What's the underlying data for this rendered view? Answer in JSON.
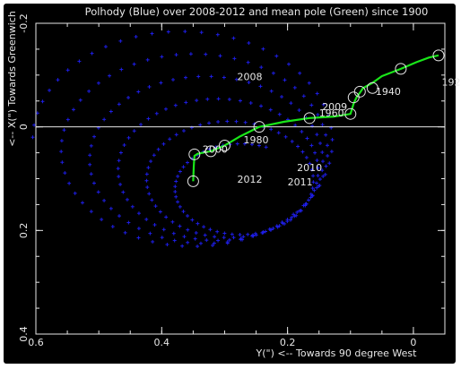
{
  "chart_data": {
    "type": "scatter",
    "title": "Polhody (Blue) over 2008-2012 and mean pole (Green) since 1900",
    "xlabel": "Y(\") <-- Towards 90 degree West",
    "ylabel": "<-- X(\") Towards Greenwich",
    "xlim": [
      0.6,
      -0.05
    ],
    "ylim": [
      -0.2,
      0.4
    ],
    "x_ticks": [
      "0.6",
      "0.4",
      "0.2",
      "0"
    ],
    "x_tick_values": [
      0.6,
      0.4,
      0.2,
      0.0
    ],
    "y_ticks": [
      "-0.2",
      "0",
      "0.2",
      "0.4"
    ],
    "y_tick_values": [
      -0.2,
      0.0,
      0.2,
      0.4
    ],
    "grid": false,
    "colors": {
      "polhody": "#1e1ee6",
      "mean_pole": "#19e619",
      "axes": "#e6e6e6",
      "background": "#000000"
    },
    "polhody_spiral": {
      "center_start": [
        0.365,
        0.02
      ],
      "center_end": [
        0.265,
        0.12
      ],
      "radius_start": [
        0.24,
        0.215
      ],
      "radius_end": [
        0.1,
        0.085
      ],
      "turns": 5.3,
      "points": 300
    },
    "mean_pole": {
      "x": [
        -0.04,
        -0.025,
        -0.005,
        0.02,
        0.05,
        0.065,
        0.08,
        0.085,
        0.09,
        0.095,
        0.1,
        0.125,
        0.165,
        0.205,
        0.245,
        0.275,
        0.3,
        0.322,
        0.335,
        0.343,
        0.348,
        0.349,
        0.35
      ],
      "y": [
        -0.138,
        -0.134,
        -0.125,
        -0.112,
        -0.098,
        -0.085,
        -0.075,
        -0.066,
        -0.058,
        -0.045,
        -0.025,
        -0.02,
        -0.017,
        -0.01,
        0.0,
        0.018,
        0.036,
        0.047,
        0.05,
        0.052,
        0.056,
        0.075,
        0.105
      ]
    },
    "markers": [
      {
        "x": -0.04,
        "y": -0.138
      },
      {
        "x": 0.02,
        "y": -0.112
      },
      {
        "x": 0.065,
        "y": -0.075
      },
      {
        "x": 0.085,
        "y": -0.068
      },
      {
        "x": 0.095,
        "y": -0.057
      },
      {
        "x": 0.1,
        "y": -0.025
      },
      {
        "x": 0.165,
        "y": -0.017
      },
      {
        "x": 0.245,
        "y": 0.0
      },
      {
        "x": 0.3,
        "y": 0.036
      },
      {
        "x": 0.322,
        "y": 0.047
      },
      {
        "x": 0.348,
        "y": 0.053
      },
      {
        "x": 0.35,
        "y": 0.105
      }
    ],
    "annotations": [
      {
        "text": "1900",
        "x": -0.1,
        "y": -0.142
      },
      {
        "text": "1920",
        "x": -0.045,
        "y": -0.08
      },
      {
        "text": "1940",
        "x": 0.06,
        "y": -0.062
      },
      {
        "text": "1960",
        "x": 0.15,
        "y": -0.02
      },
      {
        "text": "2009",
        "x": 0.145,
        "y": -0.032
      },
      {
        "text": "1980",
        "x": 0.27,
        "y": 0.032
      },
      {
        "text": "2000",
        "x": 0.335,
        "y": 0.05
      },
      {
        "text": "2008",
        "x": 0.28,
        "y": -0.09
      },
      {
        "text": "2010",
        "x": 0.185,
        "y": 0.085
      },
      {
        "text": "2012",
        "x": 0.28,
        "y": 0.108
      },
      {
        "text": "2011",
        "x": 0.2,
        "y": 0.113
      }
    ]
  }
}
